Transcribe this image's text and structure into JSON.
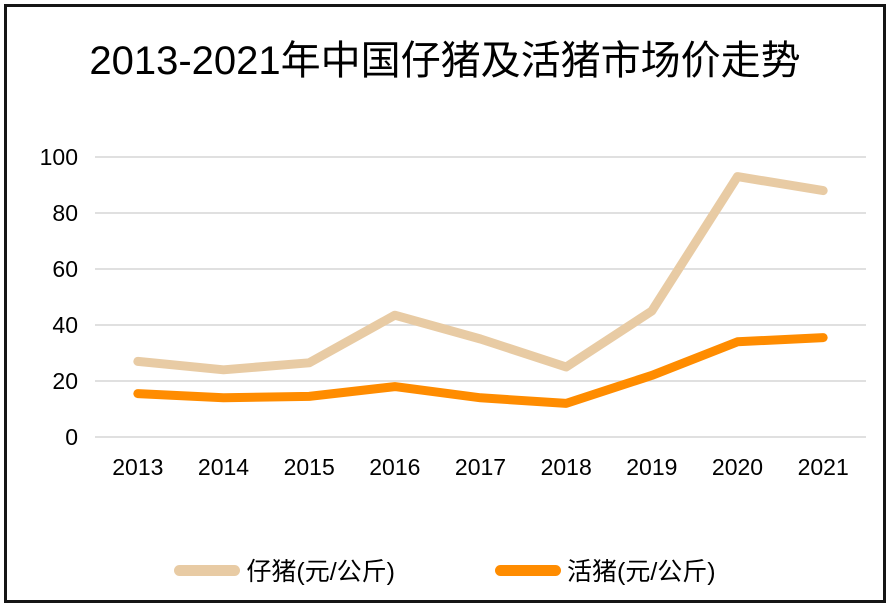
{
  "chart_data": {
    "type": "line",
    "title": "2013-2021年中国仔猪及活猪市场价走势",
    "categories": [
      "2013",
      "2014",
      "2015",
      "2016",
      "2017",
      "2018",
      "2019",
      "2020",
      "2021"
    ],
    "series": [
      {
        "name": "仔猪(元/公斤)",
        "color": "#E8CBA4",
        "values": [
          27,
          24,
          26.5,
          43.5,
          35,
          25,
          45,
          93,
          88
        ]
      },
      {
        "name": "活猪(元/公斤)",
        "color": "#FF8C00",
        "values": [
          15.5,
          14,
          14.5,
          18,
          14,
          12,
          22,
          34,
          35.5
        ]
      }
    ],
    "xlabel": "",
    "ylabel": "",
    "ylim": [
      0,
      100
    ],
    "yticks": [
      0,
      20,
      40,
      60,
      80,
      100
    ],
    "grid": "horizontal",
    "legend_position": "bottom",
    "gridline_color": "#D6D6D6",
    "text_color": "#000000",
    "background_color": "#FFFFFF"
  }
}
